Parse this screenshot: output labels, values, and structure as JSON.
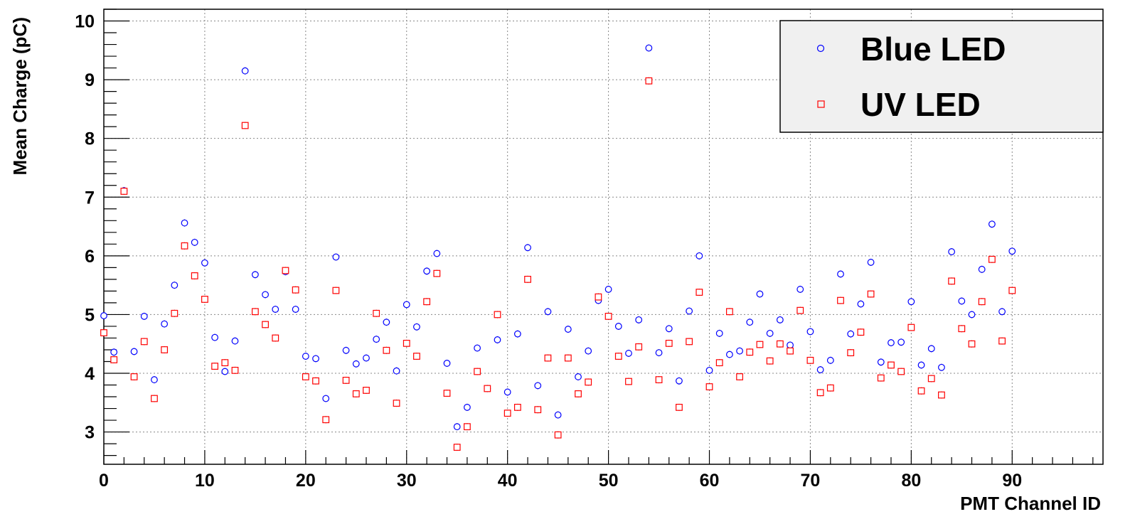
{
  "chart_data": {
    "type": "scatter",
    "xlabel": "PMT Channel ID",
    "ylabel": "Mean Charge (pC)",
    "xlim": [
      0,
      99
    ],
    "ylim": [
      2.45,
      10.2
    ],
    "x_ticks": [
      0,
      10,
      20,
      30,
      40,
      50,
      60,
      70,
      80,
      90
    ],
    "y_ticks": [
      3,
      4,
      5,
      6,
      7,
      8,
      9,
      10
    ],
    "grid": true,
    "legend_position": "top-right",
    "x": [
      0,
      1,
      2,
      3,
      4,
      5,
      6,
      7,
      8,
      9,
      10,
      11,
      12,
      13,
      14,
      15,
      16,
      17,
      18,
      19,
      20,
      21,
      22,
      23,
      24,
      25,
      26,
      27,
      28,
      29,
      30,
      31,
      32,
      33,
      34,
      35,
      36,
      37,
      38,
      39,
      40,
      41,
      42,
      43,
      44,
      45,
      46,
      47,
      48,
      49,
      50,
      51,
      52,
      53,
      54,
      55,
      56,
      57,
      58,
      59,
      60,
      61,
      62,
      63,
      64,
      65,
      66,
      67,
      68,
      69,
      70,
      71,
      72,
      73,
      74,
      75,
      76,
      77,
      78,
      79,
      80,
      81,
      82,
      83,
      84,
      85,
      86,
      87,
      88,
      89,
      90
    ],
    "series": [
      {
        "name": "Blue LED",
        "color": "#0000ff",
        "marker": "circle",
        "values": [
          4.98,
          4.36,
          7.11,
          4.37,
          4.97,
          3.89,
          4.84,
          5.5,
          6.56,
          6.23,
          5.88,
          4.61,
          4.03,
          4.55,
          9.15,
          5.68,
          5.34,
          5.09,
          5.73,
          5.09,
          4.29,
          4.25,
          3.57,
          5.98,
          4.39,
          4.16,
          4.26,
          4.58,
          4.87,
          4.04,
          5.17,
          4.79,
          5.74,
          6.04,
          4.17,
          3.09,
          3.42,
          4.43,
          3.74,
          4.57,
          3.68,
          4.67,
          6.14,
          3.79,
          5.05,
          3.29,
          4.75,
          3.94,
          4.38,
          5.24,
          5.43,
          4.8,
          4.34,
          4.91,
          9.54,
          4.35,
          4.76,
          3.87,
          5.06,
          6.0,
          4.05,
          4.68,
          4.32,
          4.38,
          4.87,
          5.35,
          4.68,
          4.91,
          4.48,
          5.43,
          4.71,
          4.06,
          4.22,
          5.69,
          4.67,
          5.18,
          5.89,
          4.19,
          4.52,
          4.53,
          5.22,
          4.14,
          4.42,
          4.1,
          6.07,
          5.23,
          5.0,
          5.77,
          6.54,
          5.05,
          6.08
        ]
      },
      {
        "name": "UV LED",
        "color": "#ff0000",
        "marker": "square",
        "values": [
          4.69,
          4.23,
          7.1,
          3.94,
          4.54,
          3.57,
          4.4,
          5.02,
          6.17,
          5.66,
          5.26,
          4.12,
          4.18,
          4.05,
          8.22,
          5.05,
          4.83,
          4.6,
          5.75,
          5.42,
          3.94,
          3.87,
          3.21,
          5.41,
          3.88,
          3.65,
          3.71,
          5.02,
          4.39,
          3.49,
          4.51,
          4.29,
          5.22,
          5.7,
          3.66,
          2.74,
          3.09,
          4.03,
          3.74,
          5.0,
          3.32,
          3.42,
          5.6,
          3.38,
          4.26,
          2.95,
          4.26,
          3.65,
          3.85,
          5.3,
          4.97,
          4.29,
          3.86,
          4.45,
          8.98,
          3.89,
          4.51,
          3.42,
          4.54,
          5.38,
          3.77,
          4.18,
          5.05,
          3.94,
          4.36,
          4.49,
          4.21,
          4.5,
          4.38,
          5.07,
          4.22,
          3.67,
          3.75,
          5.24,
          4.35,
          4.7,
          5.35,
          3.92,
          4.14,
          4.03,
          4.78,
          3.7,
          3.91,
          3.63,
          5.57,
          4.76,
          4.5,
          5.22,
          5.94,
          4.55,
          5.41
        ]
      }
    ]
  }
}
